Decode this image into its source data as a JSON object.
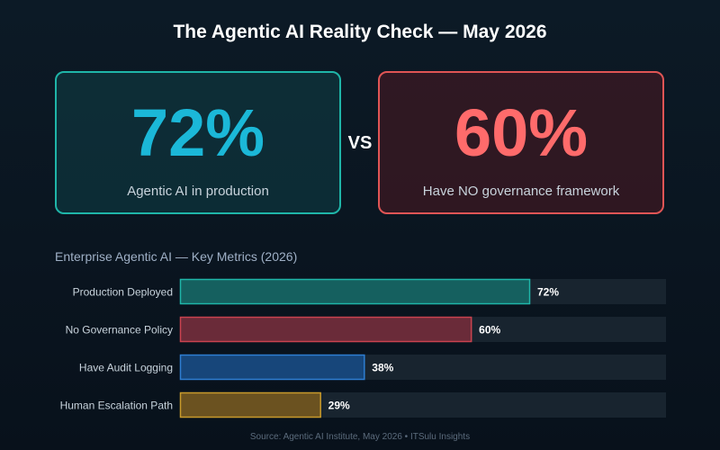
{
  "header": {
    "title": "The Agentic AI Reality Check — May 2026"
  },
  "stats": {
    "left": {
      "value": "72%",
      "caption": "Agentic AI in production",
      "color": "#1bb8d8",
      "border": "#1fb5a8"
    },
    "vs": "VS",
    "right": {
      "value": "60%",
      "caption": "Have NO governance framework",
      "color": "#ff6b6b",
      "border": "#e05555"
    }
  },
  "chart_data": {
    "type": "bar",
    "orientation": "horizontal",
    "title": "Enterprise Agentic AI — Key Metrics (2026)",
    "xlim": [
      0,
      100
    ],
    "categories": [
      "Production Deployed",
      "No Governance Policy",
      "Have Audit Logging",
      "Human Escalation Path"
    ],
    "values": [
      72,
      60,
      38,
      29
    ],
    "value_labels": [
      "72%",
      "60%",
      "38%",
      "29%"
    ],
    "colors": [
      {
        "fill": "#15605f",
        "stroke": "#1fb5a8"
      },
      {
        "fill": "#6a2b39",
        "stroke": "#c9434f"
      },
      {
        "fill": "#17467a",
        "stroke": "#2e7dd1"
      },
      {
        "fill": "#6b5220",
        "stroke": "#c89a2b"
      }
    ],
    "track_color": "#18242f",
    "grid": false
  },
  "footer": {
    "source": "Source: Agentic AI Institute, May 2026  •  ITSulu Insights"
  }
}
